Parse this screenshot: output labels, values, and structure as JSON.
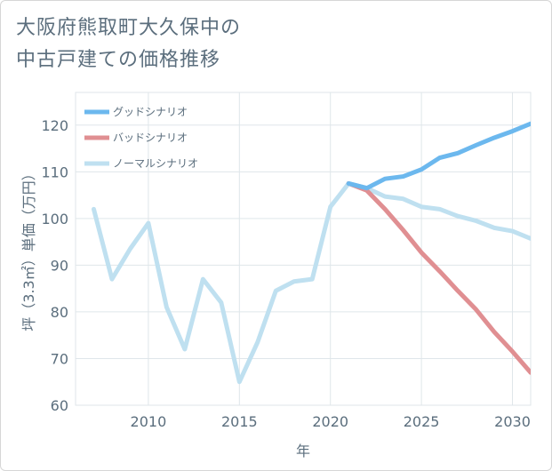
{
  "chart_data": {
    "type": "line",
    "title_line1": "大阪府熊取町大久保中の",
    "title_line2": "中古戸建ての価格推移",
    "xlabel": "年",
    "ylabel": "坪（3.3㎡）単価（万円）",
    "xlim": [
      2006,
      2031
    ],
    "ylim": [
      60,
      127
    ],
    "x_ticks": [
      2010,
      2015,
      2020,
      2025,
      2030
    ],
    "y_ticks": [
      60,
      70,
      80,
      90,
      100,
      110,
      120
    ],
    "series": [
      {
        "name": "グッドシナリオ",
        "color": "#6cb8ee",
        "x": [
          2021,
          2022,
          2023,
          2024,
          2025,
          2026,
          2027,
          2028,
          2029,
          2030,
          2031
        ],
        "values": [
          107.5,
          106.5,
          108.5,
          109,
          110.5,
          113,
          114,
          115.7,
          117.3,
          118.7,
          120.3
        ]
      },
      {
        "name": "バッドシナリオ",
        "color": "#e08f92",
        "x": [
          2021,
          2022,
          2023,
          2024,
          2025,
          2026,
          2027,
          2028,
          2029,
          2030,
          2031
        ],
        "values": [
          107.5,
          106,
          102,
          97.5,
          92.7,
          88.7,
          84.5,
          80.5,
          75.7,
          71.5,
          67
        ]
      },
      {
        "name": "ノーマルシナリオ",
        "color": "#bfe0f0",
        "x": [
          2007,
          2008,
          2009,
          2010,
          2011,
          2012,
          2013,
          2014,
          2015,
          2016,
          2017,
          2018,
          2019,
          2020,
          2021,
          2022,
          2023,
          2024,
          2025,
          2026,
          2027,
          2028,
          2029,
          2030,
          2031
        ],
        "values": [
          102,
          87,
          93.5,
          99,
          81,
          72,
          87,
          82,
          65,
          73.5,
          84.5,
          86.5,
          87,
          102.5,
          107.5,
          106.5,
          104.7,
          104.2,
          102.5,
          102,
          100.5,
          99.5,
          98,
          97.3,
          95.7
        ]
      }
    ]
  }
}
